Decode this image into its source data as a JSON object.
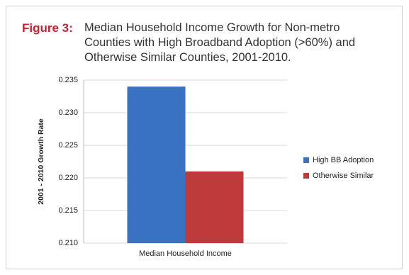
{
  "chart_data": {
    "type": "bar",
    "figure_label": "Figure 3:",
    "title": "Median Household Income Growth for Non-metro Counties with High Broadband Adoption (>60%) and Otherwise Similar Counties, 2001-2010.",
    "y_label": "2001 - 2010 Growth Rate",
    "categories": [
      "Median Household Income"
    ],
    "series": [
      {
        "name": "High BB Adoption",
        "color": "#3a72c2",
        "values": [
          0.234
        ]
      },
      {
        "name": "Otherwise Similar",
        "color": "#bf3a3a",
        "values": [
          0.221
        ]
      }
    ],
    "ylim": [
      0.21,
      0.235
    ],
    "yticks": [
      {
        "value": 0.21,
        "label": "0.210"
      },
      0.215,
      {
        "value": 0.22,
        "label": "0.220"
      },
      0.225,
      {
        "value": 0.23,
        "label": "0.230"
      },
      0.235
    ],
    "grid": true,
    "legend": "right"
  }
}
